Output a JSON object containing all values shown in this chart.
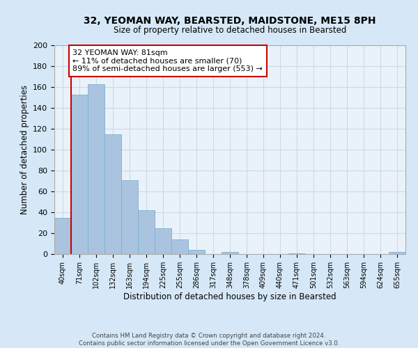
{
  "title": "32, YEOMAN WAY, BEARSTED, MAIDSTONE, ME15 8PH",
  "subtitle": "Size of property relative to detached houses in Bearsted",
  "xlabel": "Distribution of detached houses by size in Bearsted",
  "ylabel": "Number of detached properties",
  "bin_labels": [
    "40sqm",
    "71sqm",
    "102sqm",
    "132sqm",
    "163sqm",
    "194sqm",
    "225sqm",
    "255sqm",
    "286sqm",
    "317sqm",
    "348sqm",
    "378sqm",
    "409sqm",
    "440sqm",
    "471sqm",
    "501sqm",
    "532sqm",
    "563sqm",
    "594sqm",
    "624sqm",
    "655sqm"
  ],
  "bar_values": [
    35,
    153,
    163,
    115,
    71,
    42,
    25,
    14,
    4,
    0,
    2,
    0,
    0,
    0,
    1,
    0,
    0,
    0,
    0,
    0,
    2
  ],
  "bar_color": "#aac4e0",
  "bar_edge_color": "#7aafd4",
  "vline_x": 1,
  "vline_color": "#cc0000",
  "annotation_box_text": "32 YEOMAN WAY: 81sqm\n← 11% of detached houses are smaller (70)\n89% of semi-detached houses are larger (553) →",
  "annotation_box_color": "#cc0000",
  "annotation_box_fill": "#ffffff",
  "ylim": [
    0,
    200
  ],
  "yticks": [
    0,
    20,
    40,
    60,
    80,
    100,
    120,
    140,
    160,
    180,
    200
  ],
  "grid_color": "#c8daea",
  "background_color": "#d6e8f7",
  "plot_bg_color": "#eaf2f9",
  "footer_line1": "Contains HM Land Registry data © Crown copyright and database right 2024.",
  "footer_line2": "Contains public sector information licensed under the Open Government Licence v3.0."
}
